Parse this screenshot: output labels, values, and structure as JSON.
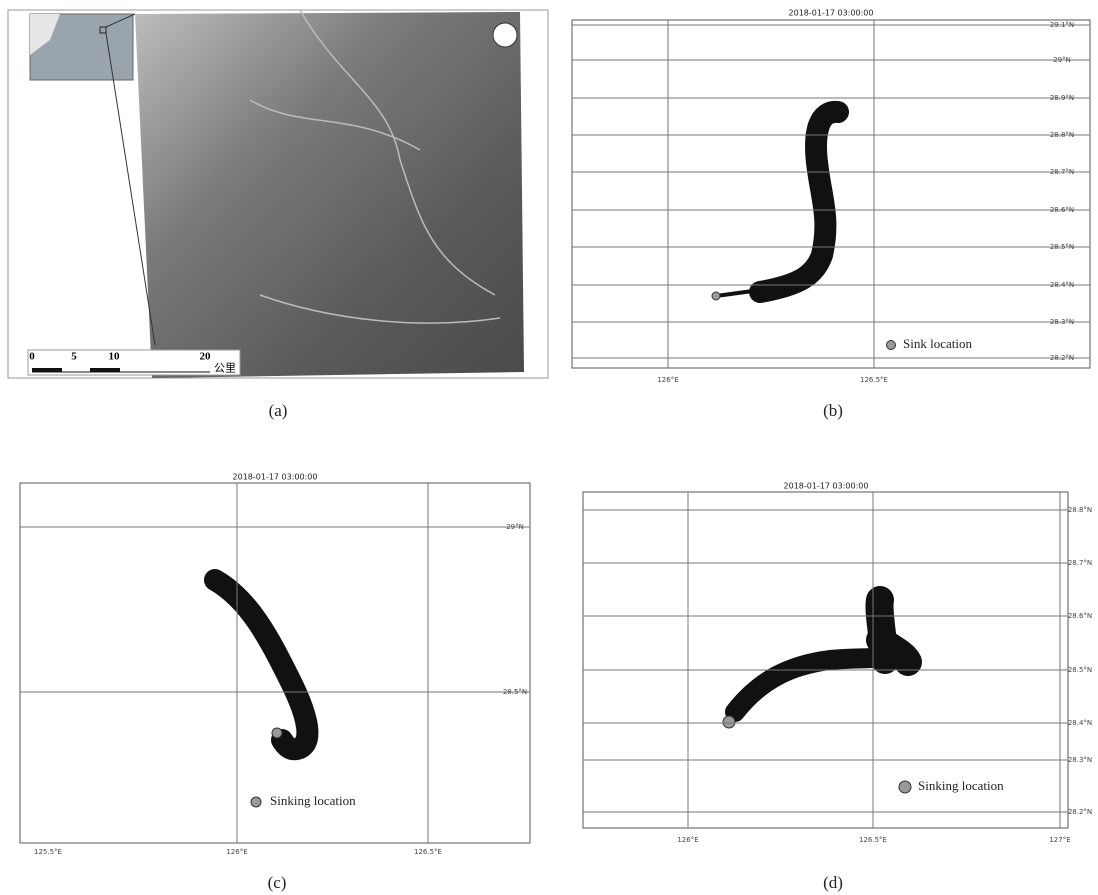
{
  "panels": [
    {
      "caption": "(a)",
      "scale_labels": [
        "0",
        "5",
        "10",
        "20"
      ],
      "scale_unit": "公里"
    },
    {
      "caption": "(b)",
      "title": "2018-01-17 03:00:00",
      "x_labels": [
        "126°E",
        "126.5°E"
      ],
      "y_labels": [
        "29.1°N",
        "29°N",
        "28.9°N",
        "28.8°N",
        "28.7°N",
        "28.6°N",
        "28.5°N",
        "28.4°N",
        "28.3°N",
        "28.2°N"
      ],
      "legend": "Sink location"
    },
    {
      "caption": "(c)",
      "title": "2018-01-17 03:00:00",
      "x_labels": [
        "125.5°E",
        "126°E",
        "126.5°E"
      ],
      "y_labels": [
        "29°N",
        "28.5°N"
      ],
      "legend": "Sinking location"
    },
    {
      "caption": "(d)",
      "title": "2018-01-17 03:00:00",
      "x_labels": [
        "126°E",
        "126.5°E",
        "127°E"
      ],
      "y_labels": [
        "28.8°N",
        "28.7°N",
        "28.6°N",
        "28.5°N",
        "28.4°N",
        "28.3°N",
        "28.2°N"
      ],
      "legend": "Sinking location"
    }
  ]
}
